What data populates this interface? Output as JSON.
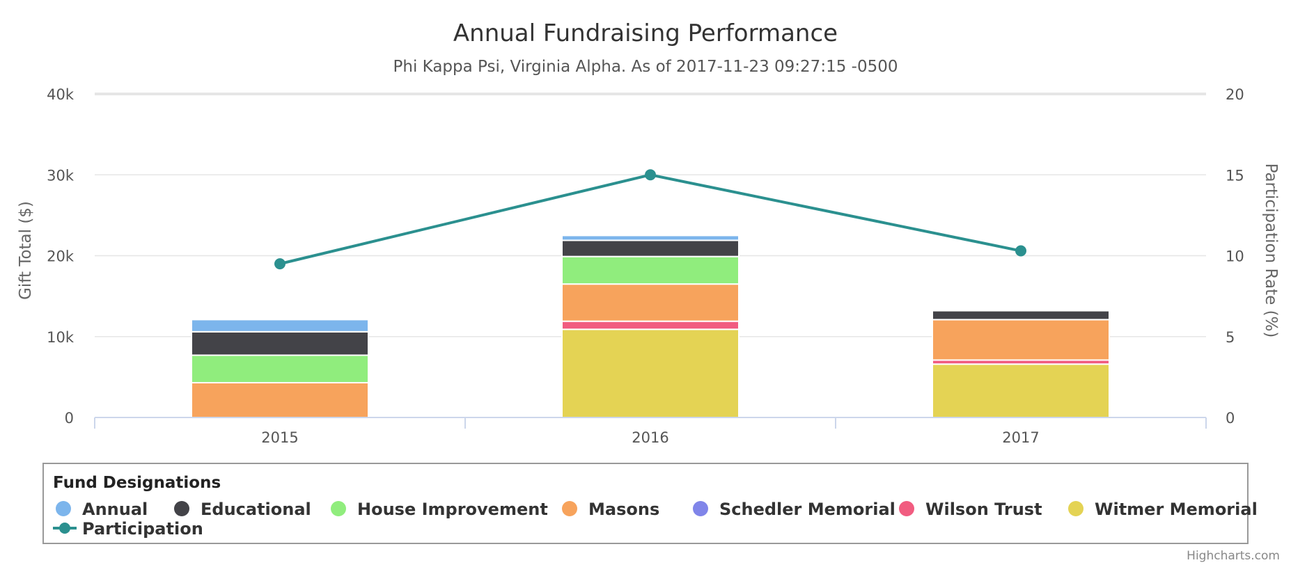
{
  "chart_data": {
    "type": "bar",
    "stacked": true,
    "title": "Annual Fundraising Performance",
    "subtitle": "Phi Kappa Psi, Virginia Alpha. As of 2017-11-23 09:27:15 -0500",
    "categories": [
      "2015",
      "2016",
      "2017"
    ],
    "yaxis_left": {
      "title": "Gift Total ($)",
      "range": [
        0,
        40000
      ],
      "ticks": [
        0,
        10000,
        20000,
        30000,
        40000
      ],
      "tick_labels": [
        "0",
        "10k",
        "20k",
        "30k",
        "40k"
      ]
    },
    "yaxis_right": {
      "title": "Participation Rate (%)",
      "range": [
        0,
        20
      ],
      "ticks": [
        0,
        5,
        10,
        15,
        20
      ],
      "tick_labels": [
        "0",
        "5",
        "10",
        "15",
        "20"
      ]
    },
    "grid": true,
    "legend": {
      "title": "Fund Designations",
      "placement": "bottom"
    },
    "series": [
      {
        "name": "Annual",
        "type": "bar",
        "color": "#7cb5ec",
        "values": [
          1500,
          600,
          0
        ]
      },
      {
        "name": "Educational",
        "type": "bar",
        "color": "#434348",
        "values": [
          2900,
          2000,
          1100
        ]
      },
      {
        "name": "House Improvement",
        "type": "bar",
        "color": "#90ed7d",
        "values": [
          3400,
          3400,
          0
        ]
      },
      {
        "name": "Masons",
        "type": "bar",
        "color": "#f7a35c",
        "values": [
          4300,
          4600,
          5000
        ]
      },
      {
        "name": "Schedler Memorial",
        "type": "bar",
        "color": "#8085e9",
        "values": [
          0,
          0,
          0
        ]
      },
      {
        "name": "Wilson Trust",
        "type": "bar",
        "color": "#f15c80",
        "values": [
          0,
          1000,
          500
        ]
      },
      {
        "name": "Witmer Memorial",
        "type": "bar",
        "color": "#e4d354",
        "values": [
          0,
          10900,
          6600
        ]
      },
      {
        "name": "Participation",
        "type": "line",
        "axis": "right",
        "color": "#2b908f",
        "values": [
          9.5,
          15.0,
          10.3
        ]
      }
    ],
    "credits": "Highcharts.com"
  }
}
